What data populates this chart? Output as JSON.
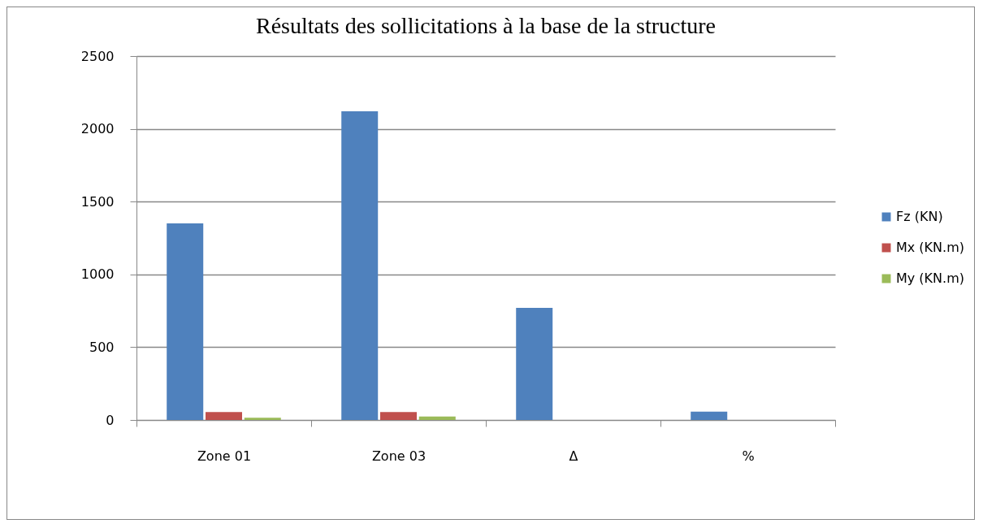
{
  "chart_data": {
    "type": "bar",
    "title": "Résultats des sollicitations à la base de la structure",
    "categories": [
      "Zone 01",
      "Zone 03",
      "Δ",
      "%"
    ],
    "series": [
      {
        "name": "Fz (KN)",
        "color": "#4f81bd",
        "values": [
          1350,
          2120,
          770,
          57
        ]
      },
      {
        "name": "Mx (KN.m)",
        "color": "#c0504d",
        "values": [
          54,
          54,
          0,
          0
        ]
      },
      {
        "name": "My (KN.m)",
        "color": "#9bbb59",
        "values": [
          15,
          24,
          0,
          0
        ]
      }
    ],
    "ylim": [
      0,
      2500
    ],
    "yticks": [
      0,
      500,
      1000,
      1500,
      2000,
      2500
    ],
    "grid": "y",
    "legend": "right"
  }
}
